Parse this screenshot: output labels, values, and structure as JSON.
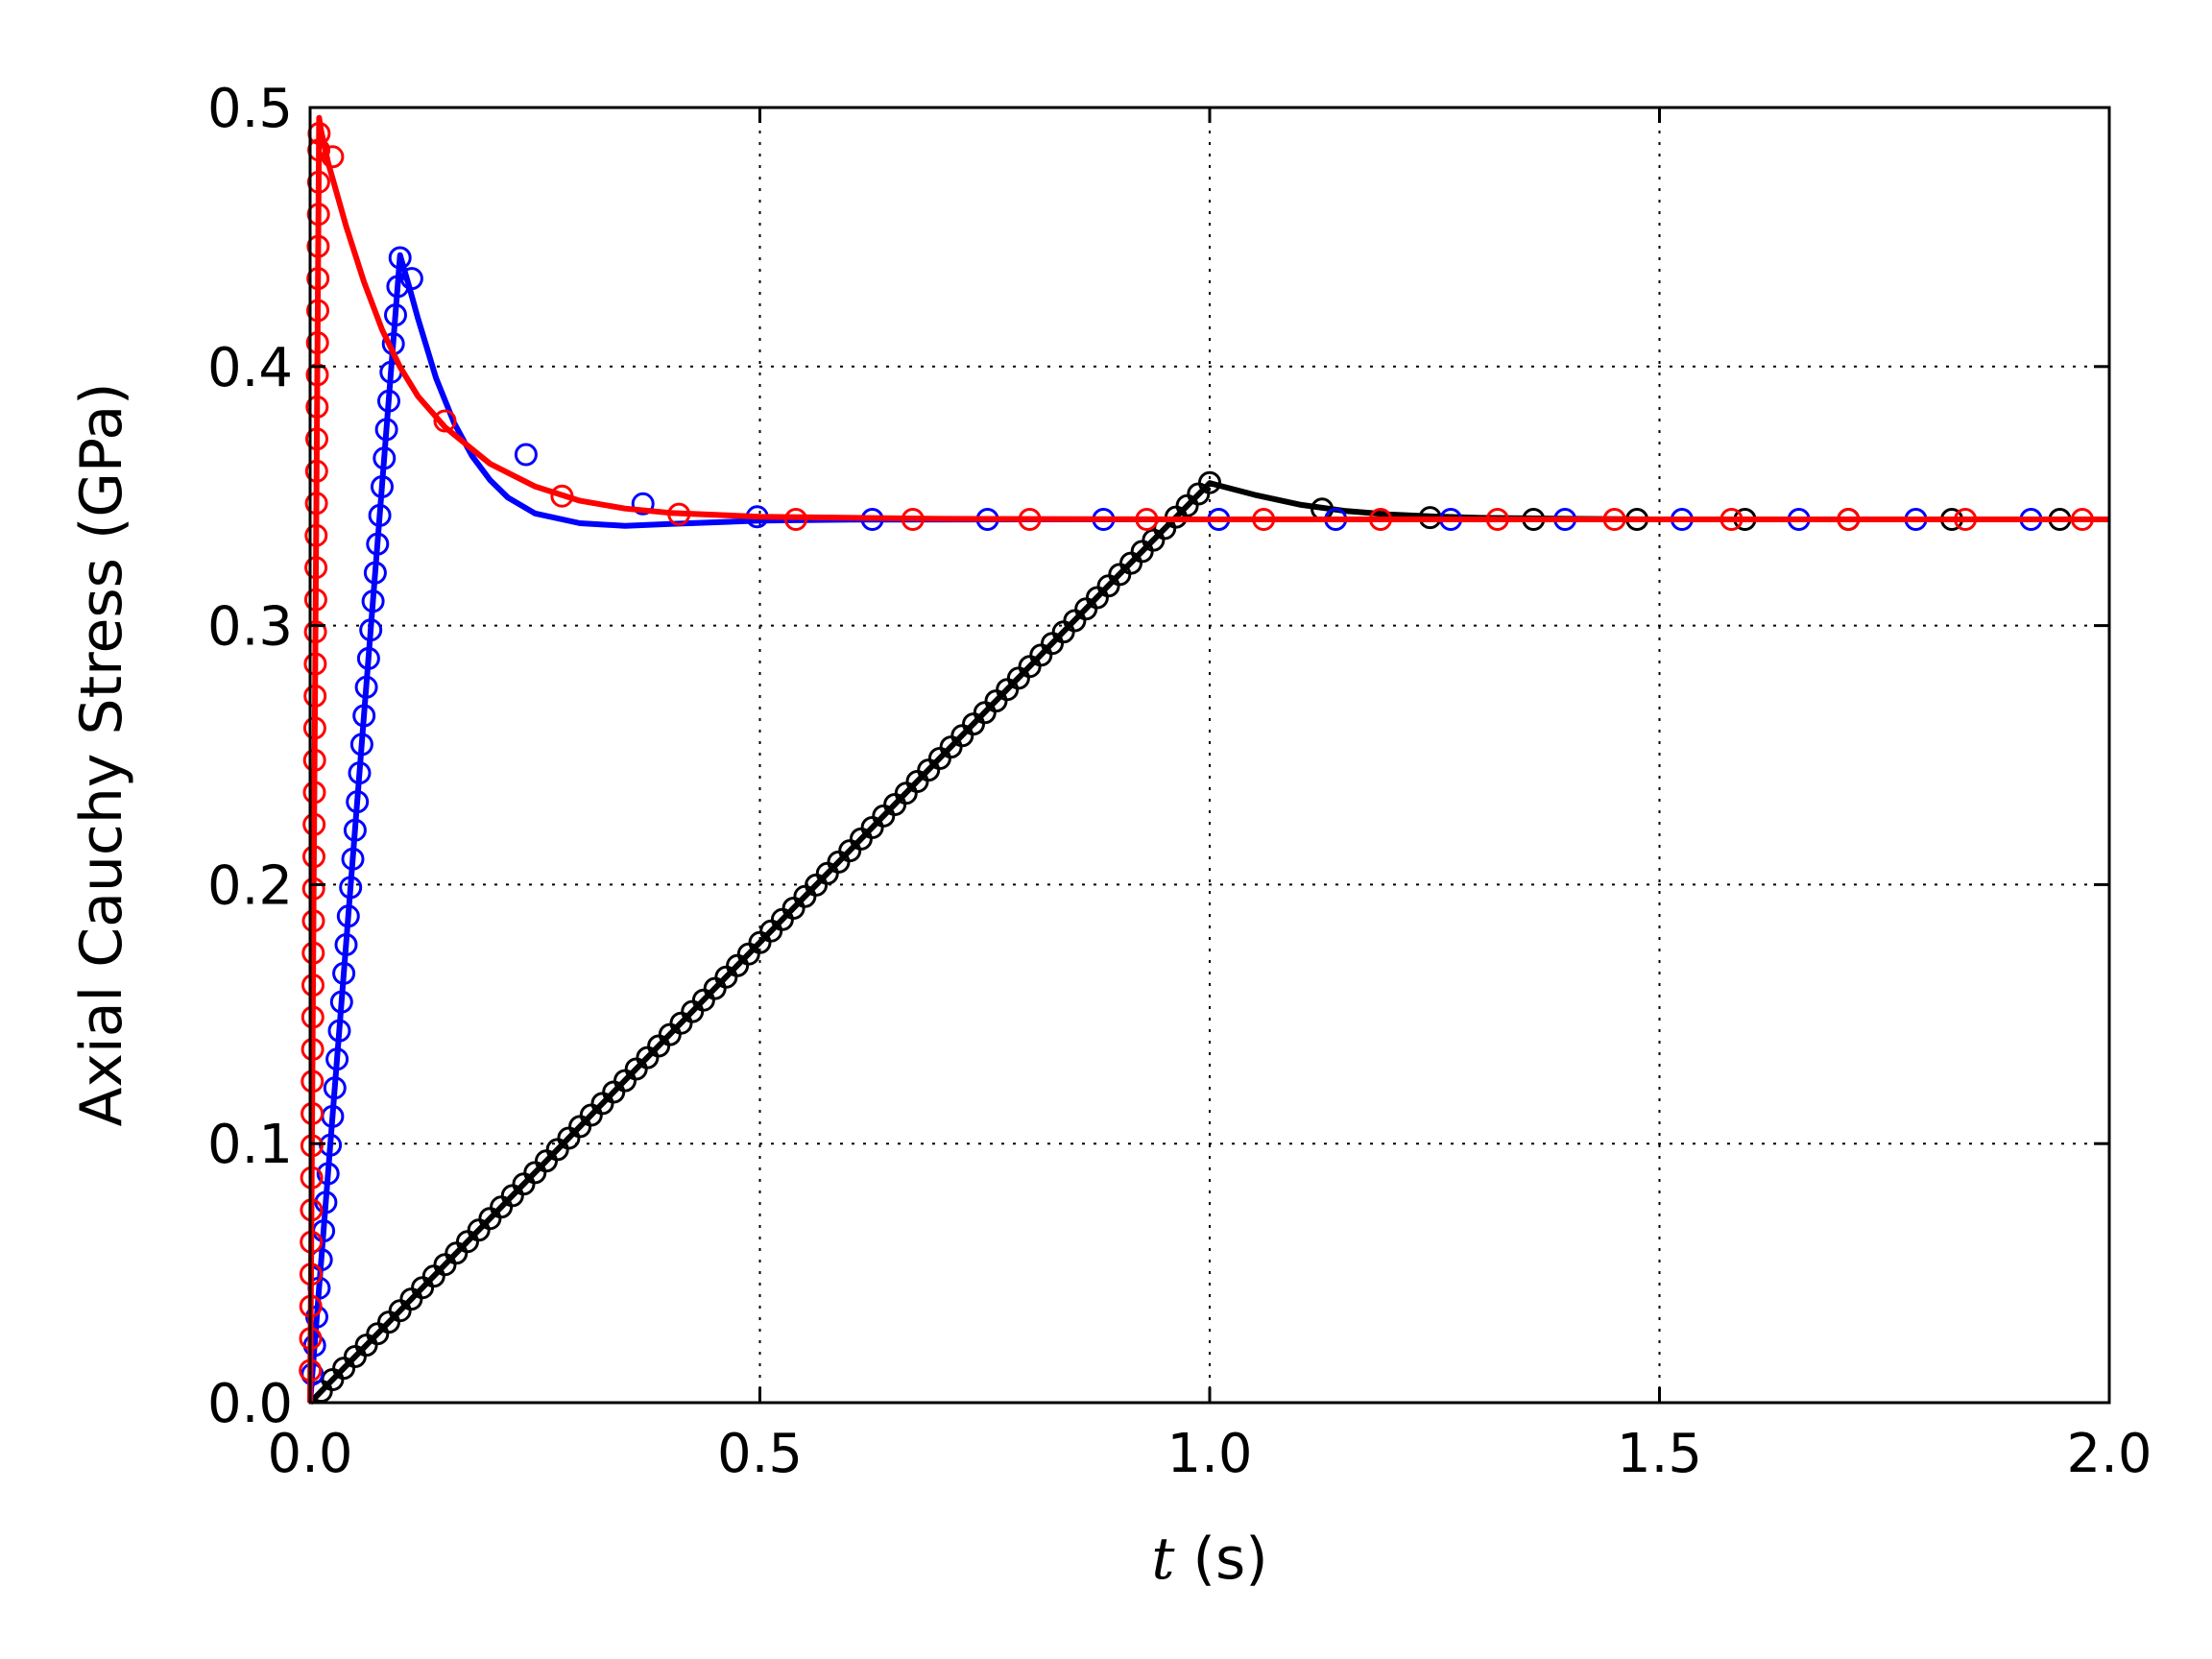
{
  "chart_data": {
    "type": "line",
    "title": "",
    "xlabel_symbol": "t",
    "xlabel_unit": " (s)",
    "ylabel": "Axial Cauchy Stress (GPa)",
    "xlim": [
      0.0,
      2.0
    ],
    "ylim": [
      0.0,
      0.5
    ],
    "xticks": [
      "0.0",
      "0.5",
      "1.0",
      "1.5",
      "2.0"
    ],
    "yticks": [
      "0.0",
      "0.1",
      "0.2",
      "0.3",
      "0.4",
      "0.5"
    ],
    "grid": true,
    "legend": false,
    "series": [
      {
        "color": "#000000",
        "line_x": [
          0.0,
          0.1,
          0.2,
          0.3,
          0.4,
          0.5,
          0.6,
          0.7,
          0.8,
          0.9,
          1.0,
          1.05,
          1.1,
          1.15,
          1.2,
          1.25,
          1.3,
          1.4,
          1.5,
          1.7,
          2.0
        ],
        "line_y": [
          0.0,
          0.0355,
          0.0711,
          0.1066,
          0.1422,
          0.1777,
          0.2132,
          0.2488,
          0.2843,
          0.3199,
          0.355,
          0.3505,
          0.3467,
          0.3443,
          0.3429,
          0.3421,
          0.3416,
          0.3412,
          0.341,
          0.341,
          0.341
        ],
        "marker_x": [
          0.0125,
          0.025,
          0.0375,
          0.05,
          0.0625,
          0.075,
          0.0875,
          0.1,
          0.1125,
          0.125,
          0.1375,
          0.15,
          0.1625,
          0.175,
          0.1875,
          0.2,
          0.2125,
          0.225,
          0.2375,
          0.25,
          0.2625,
          0.275,
          0.2875,
          0.3,
          0.3125,
          0.325,
          0.3375,
          0.35,
          0.3625,
          0.375,
          0.3875,
          0.4,
          0.4125,
          0.425,
          0.4375,
          0.45,
          0.4625,
          0.475,
          0.4875,
          0.5,
          0.5125,
          0.525,
          0.5375,
          0.55,
          0.5625,
          0.575,
          0.5875,
          0.6,
          0.6125,
          0.625,
          0.6375,
          0.65,
          0.6625,
          0.675,
          0.6875,
          0.7,
          0.7125,
          0.725,
          0.7375,
          0.75,
          0.7625,
          0.775,
          0.7875,
          0.8,
          0.8125,
          0.825,
          0.8375,
          0.85,
          0.8625,
          0.875,
          0.8875,
          0.9,
          0.9125,
          0.925,
          0.9375,
          0.95,
          0.9625,
          0.975,
          0.9875,
          1.0,
          1.125,
          1.245,
          1.36,
          1.475,
          1.595,
          1.71,
          1.825,
          1.945
        ],
        "marker_y": [
          0.0044,
          0.0089,
          0.0133,
          0.0178,
          0.0222,
          0.0266,
          0.0311,
          0.0355,
          0.04,
          0.0444,
          0.0488,
          0.0533,
          0.0577,
          0.0622,
          0.0666,
          0.0711,
          0.0755,
          0.0799,
          0.0844,
          0.0888,
          0.0933,
          0.0977,
          0.1021,
          0.1066,
          0.111,
          0.1155,
          0.1199,
          0.1243,
          0.1288,
          0.1332,
          0.1377,
          0.1421,
          0.1465,
          0.151,
          0.1554,
          0.1599,
          0.1643,
          0.1687,
          0.1732,
          0.1776,
          0.1821,
          0.1865,
          0.1909,
          0.1954,
          0.1998,
          0.2043,
          0.2087,
          0.2131,
          0.2176,
          0.222,
          0.2265,
          0.2309,
          0.2353,
          0.2398,
          0.2442,
          0.2487,
          0.2531,
          0.2575,
          0.262,
          0.2664,
          0.2709,
          0.2753,
          0.2797,
          0.2842,
          0.2886,
          0.2931,
          0.2975,
          0.3019,
          0.3064,
          0.3108,
          0.3153,
          0.3197,
          0.3241,
          0.3286,
          0.333,
          0.3375,
          0.3419,
          0.3463,
          0.3508,
          0.3552,
          0.345,
          0.3417,
          0.341,
          0.341,
          0.341,
          0.341,
          0.341,
          0.341
        ]
      },
      {
        "color": "#0000ff",
        "line_x": [
          0.0,
          0.02,
          0.04,
          0.06,
          0.08,
          0.1,
          0.11,
          0.12,
          0.14,
          0.16,
          0.18,
          0.2,
          0.22,
          0.25,
          0.3,
          0.35,
          0.4,
          0.5,
          0.6,
          0.8,
          1.0,
          1.5,
          2.0
        ],
        "line_y": [
          0.0,
          0.0886,
          0.1772,
          0.2658,
          0.3544,
          0.443,
          0.431,
          0.4185,
          0.3955,
          0.3783,
          0.3655,
          0.3562,
          0.3494,
          0.3433,
          0.3395,
          0.3385,
          0.3392,
          0.3405,
          0.3409,
          0.341,
          0.341,
          0.341,
          0.341
        ],
        "marker_x": [
          0.0025,
          0.005,
          0.0075,
          0.01,
          0.0125,
          0.015,
          0.0175,
          0.02,
          0.0225,
          0.025,
          0.0275,
          0.03,
          0.0325,
          0.035,
          0.0375,
          0.04,
          0.0425,
          0.045,
          0.0475,
          0.05,
          0.0525,
          0.055,
          0.0575,
          0.06,
          0.0625,
          0.065,
          0.0675,
          0.07,
          0.0725,
          0.075,
          0.0775,
          0.08,
          0.0825,
          0.085,
          0.0875,
          0.09,
          0.0925,
          0.095,
          0.0975,
          0.1,
          0.113,
          0.24,
          0.37,
          0.497,
          0.625,
          0.753,
          0.882,
          1.01,
          1.14,
          1.268,
          1.395,
          1.525,
          1.655,
          1.785,
          1.913
        ],
        "marker_y": [
          0.011,
          0.0221,
          0.0331,
          0.0442,
          0.0552,
          0.0663,
          0.0773,
          0.0884,
          0.0994,
          0.1105,
          0.1215,
          0.1326,
          0.1436,
          0.1547,
          0.1657,
          0.1768,
          0.1878,
          0.1989,
          0.2099,
          0.221,
          0.232,
          0.2431,
          0.2541,
          0.2652,
          0.2762,
          0.2873,
          0.2983,
          0.3094,
          0.3204,
          0.3315,
          0.3425,
          0.3536,
          0.3646,
          0.3757,
          0.3867,
          0.3978,
          0.4088,
          0.4199,
          0.4309,
          0.442,
          0.434,
          0.366,
          0.347,
          0.342,
          0.341,
          0.341,
          0.341,
          0.341,
          0.341,
          0.341,
          0.341,
          0.341,
          0.341,
          0.341,
          0.341
        ]
      },
      {
        "color": "#ff0000",
        "line_x": [
          0.0,
          0.002,
          0.004,
          0.006,
          0.008,
          0.01,
          0.012,
          0.02,
          0.04,
          0.06,
          0.08,
          0.1,
          0.12,
          0.15,
          0.2,
          0.25,
          0.3,
          0.35,
          0.4,
          0.5,
          0.7,
          1.0,
          1.5,
          2.0
        ],
        "line_y": [
          0.0,
          0.0992,
          0.1984,
          0.2976,
          0.3968,
          0.496,
          0.4915,
          0.4788,
          0.4542,
          0.4326,
          0.4142,
          0.3998,
          0.3885,
          0.3766,
          0.3625,
          0.3537,
          0.3482,
          0.3452,
          0.3435,
          0.342,
          0.3412,
          0.341,
          0.341,
          0.341
        ],
        "marker_x": [
          0.00025,
          0.0005,
          0.00075,
          0.001,
          0.00125,
          0.0015,
          0.00175,
          0.002,
          0.00225,
          0.0025,
          0.00275,
          0.003,
          0.00325,
          0.0035,
          0.00375,
          0.004,
          0.00425,
          0.0045,
          0.00475,
          0.005,
          0.00525,
          0.0055,
          0.00575,
          0.006,
          0.00625,
          0.0065,
          0.00675,
          0.007,
          0.00725,
          0.0075,
          0.00775,
          0.008,
          0.00825,
          0.0085,
          0.00875,
          0.009,
          0.00925,
          0.0095,
          0.00975,
          0.01,
          0.025,
          0.15,
          0.28,
          0.41,
          0.54,
          0.67,
          0.8,
          0.93,
          1.06,
          1.19,
          1.32,
          1.45,
          1.58,
          1.71,
          1.84,
          1.97
        ],
        "marker_y": [
          0.0124,
          0.0248,
          0.0372,
          0.0496,
          0.062,
          0.0744,
          0.0868,
          0.0992,
          0.1116,
          0.124,
          0.1364,
          0.1488,
          0.1612,
          0.1736,
          0.186,
          0.1984,
          0.2108,
          0.2232,
          0.2356,
          0.248,
          0.2604,
          0.2728,
          0.2852,
          0.2976,
          0.31,
          0.3224,
          0.3348,
          0.3472,
          0.3596,
          0.372,
          0.3844,
          0.3968,
          0.4092,
          0.4216,
          0.434,
          0.4464,
          0.4588,
          0.4712,
          0.4836,
          0.49,
          0.481,
          0.379,
          0.35,
          0.343,
          0.341,
          0.341,
          0.341,
          0.341,
          0.341,
          0.341,
          0.341,
          0.341,
          0.341,
          0.341,
          0.341,
          0.341
        ]
      }
    ]
  }
}
